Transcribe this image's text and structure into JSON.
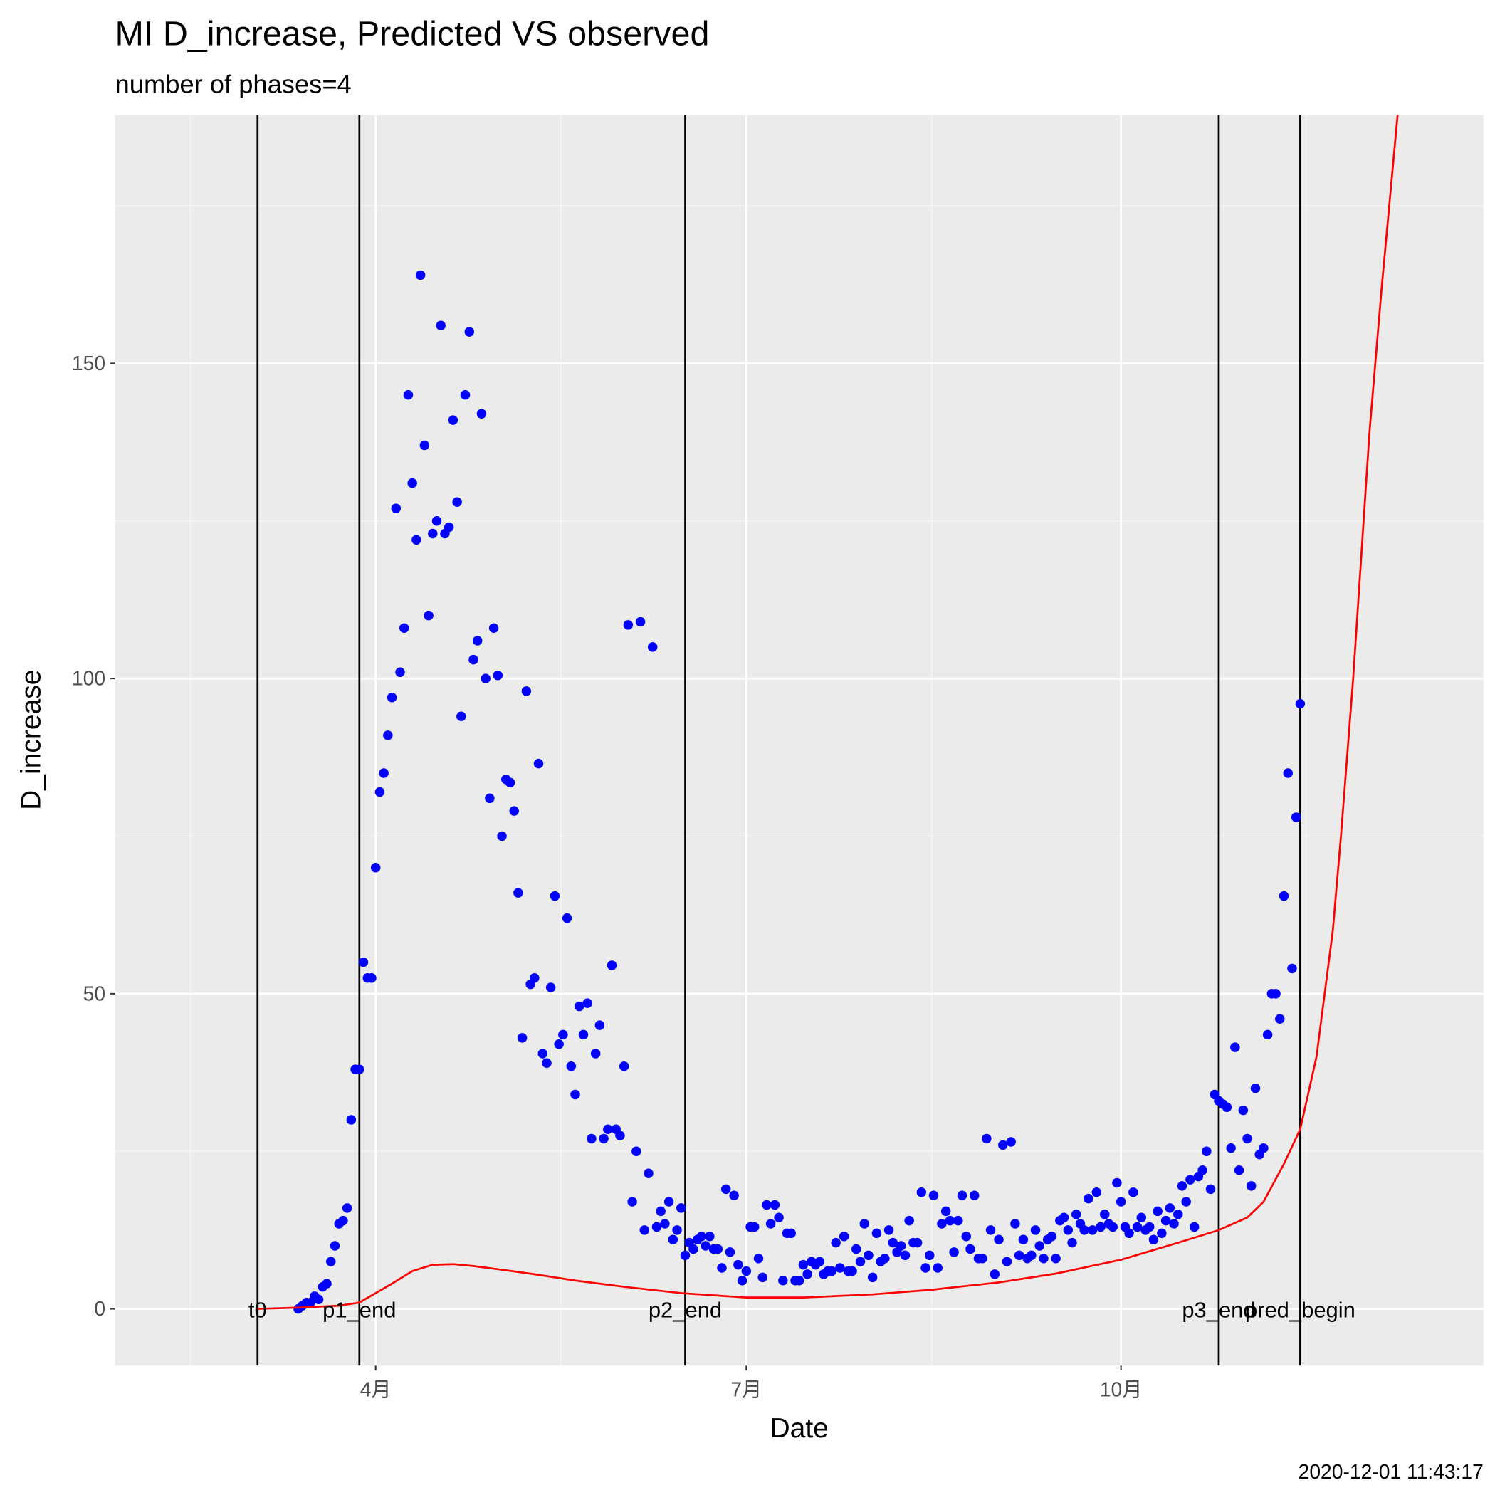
{
  "chart_data": {
    "type": "scatter",
    "title": "MI D_increase, Predicted VS observed",
    "subtitle": "number of phases=4",
    "x_label": "Date",
    "y_label": "D_increase",
    "caption": "2020-12-01 11:43:17",
    "xlim": [
      "2020-01-28",
      "2020-12-29"
    ],
    "xticks": [
      {
        "value": "2020-04-01",
        "label": "4月"
      },
      {
        "value": "2020-07-01",
        "label": "7月"
      },
      {
        "value": "2020-10-01",
        "label": "10月"
      }
    ],
    "ylim": [
      -9,
      189.4
    ],
    "yticks": [
      0,
      50,
      100,
      150
    ],
    "grid": true,
    "vlines": [
      {
        "label": "t0",
        "x": "2020-03-03"
      },
      {
        "label": "p1_end",
        "x": "2020-03-28"
      },
      {
        "label": "p2_end",
        "x": "2020-06-16"
      },
      {
        "label": "p3_end",
        "x": "2020-10-25"
      },
      {
        "label": "pred_begin",
        "x": "2020-11-14"
      }
    ],
    "series": [
      {
        "kind": "point",
        "color": "#0000ff",
        "x": [
          "2020-03-13",
          "2020-03-14",
          "2020-03-15",
          "2020-03-16",
          "2020-03-17",
          "2020-03-18",
          "2020-03-19",
          "2020-03-20",
          "2020-03-21",
          "2020-03-22",
          "2020-03-23",
          "2020-03-24",
          "2020-03-25",
          "2020-03-26",
          "2020-03-27",
          "2020-03-28",
          "2020-03-29",
          "2020-03-30",
          "2020-03-31",
          "2020-04-01",
          "2020-04-02",
          "2020-04-03",
          "2020-04-04",
          "2020-04-05",
          "2020-04-06",
          "2020-04-07",
          "2020-04-08",
          "2020-04-09",
          "2020-04-10",
          "2020-04-11",
          "2020-04-12",
          "2020-04-13",
          "2020-04-14",
          "2020-04-15",
          "2020-04-16",
          "2020-04-17",
          "2020-04-18",
          "2020-04-19",
          "2020-04-20",
          "2020-04-21",
          "2020-04-22",
          "2020-04-23",
          "2020-04-24",
          "2020-04-25",
          "2020-04-26",
          "2020-04-27",
          "2020-04-28",
          "2020-04-29",
          "2020-04-30",
          "2020-05-01",
          "2020-05-02",
          "2020-05-03",
          "2020-05-04",
          "2020-05-05",
          "2020-05-06",
          "2020-05-07",
          "2020-05-08",
          "2020-05-09",
          "2020-05-10",
          "2020-05-11",
          "2020-05-12",
          "2020-05-13",
          "2020-05-14",
          "2020-05-15",
          "2020-05-16",
          "2020-05-17",
          "2020-05-18",
          "2020-05-19",
          "2020-05-20",
          "2020-05-21",
          "2020-05-22",
          "2020-05-23",
          "2020-05-24",
          "2020-05-25",
          "2020-05-26",
          "2020-05-27",
          "2020-05-28",
          "2020-05-29",
          "2020-05-30",
          "2020-05-31",
          "2020-06-01",
          "2020-06-02",
          "2020-06-03",
          "2020-06-04",
          "2020-06-05",
          "2020-06-06",
          "2020-06-07",
          "2020-06-08",
          "2020-06-09",
          "2020-06-10",
          "2020-06-11",
          "2020-06-12",
          "2020-06-13",
          "2020-06-14",
          "2020-06-15",
          "2020-06-16",
          "2020-06-17",
          "2020-06-18",
          "2020-06-19",
          "2020-06-20",
          "2020-06-21",
          "2020-06-22",
          "2020-06-23",
          "2020-06-24",
          "2020-06-25",
          "2020-06-26",
          "2020-06-27",
          "2020-06-28",
          "2020-06-29",
          "2020-06-30",
          "2020-07-01",
          "2020-07-02",
          "2020-07-03",
          "2020-07-04",
          "2020-07-05",
          "2020-07-06",
          "2020-07-07",
          "2020-07-08",
          "2020-07-09",
          "2020-07-10",
          "2020-07-11",
          "2020-07-12",
          "2020-07-13",
          "2020-07-14",
          "2020-07-15",
          "2020-07-16",
          "2020-07-17",
          "2020-07-18",
          "2020-07-19",
          "2020-07-20",
          "2020-07-21",
          "2020-07-22",
          "2020-07-23",
          "2020-07-24",
          "2020-07-25",
          "2020-07-26",
          "2020-07-27",
          "2020-07-28",
          "2020-07-29",
          "2020-07-30",
          "2020-07-31",
          "2020-08-01",
          "2020-08-02",
          "2020-08-03",
          "2020-08-04",
          "2020-08-05",
          "2020-08-06",
          "2020-08-07",
          "2020-08-08",
          "2020-08-09",
          "2020-08-10",
          "2020-08-11",
          "2020-08-12",
          "2020-08-13",
          "2020-08-14",
          "2020-08-15",
          "2020-08-16",
          "2020-08-17",
          "2020-08-18",
          "2020-08-19",
          "2020-08-20",
          "2020-08-21",
          "2020-08-22",
          "2020-08-23",
          "2020-08-24",
          "2020-08-25",
          "2020-08-26",
          "2020-08-27",
          "2020-08-28",
          "2020-08-29",
          "2020-08-30",
          "2020-08-31",
          "2020-09-01",
          "2020-09-02",
          "2020-09-03",
          "2020-09-04",
          "2020-09-05",
          "2020-09-06",
          "2020-09-07",
          "2020-09-08",
          "2020-09-09",
          "2020-09-10",
          "2020-09-11",
          "2020-09-12",
          "2020-09-13",
          "2020-09-14",
          "2020-09-15",
          "2020-09-16",
          "2020-09-17",
          "2020-09-18",
          "2020-09-19",
          "2020-09-20",
          "2020-09-21",
          "2020-09-22",
          "2020-09-23",
          "2020-09-24",
          "2020-09-25",
          "2020-09-26",
          "2020-09-27",
          "2020-09-28",
          "2020-09-29",
          "2020-09-30",
          "2020-10-01",
          "2020-10-02",
          "2020-10-03",
          "2020-10-04",
          "2020-10-05",
          "2020-10-06",
          "2020-10-07",
          "2020-10-08",
          "2020-10-09",
          "2020-10-10",
          "2020-10-11",
          "2020-10-12",
          "2020-10-13",
          "2020-10-14",
          "2020-10-15",
          "2020-10-16",
          "2020-10-17",
          "2020-10-18",
          "2020-10-19",
          "2020-10-20",
          "2020-10-21",
          "2020-10-22",
          "2020-10-23",
          "2020-10-24",
          "2020-10-25",
          "2020-10-26",
          "2020-10-27",
          "2020-10-28",
          "2020-10-29",
          "2020-10-30",
          "2020-10-31",
          "2020-11-01",
          "2020-11-02",
          "2020-11-03",
          "2020-11-04",
          "2020-11-05",
          "2020-11-06",
          "2020-11-07",
          "2020-11-08",
          "2020-11-09",
          "2020-11-10",
          "2020-11-11",
          "2020-11-12",
          "2020-11-13",
          "2020-11-14"
        ],
        "values": [
          0,
          0.5,
          1,
          1,
          2,
          1.5,
          3.5,
          4,
          7.5,
          10,
          13.5,
          14,
          16,
          30,
          38,
          38,
          55,
          52.5,
          52.5,
          70,
          82,
          85,
          91,
          97,
          127,
          101,
          108,
          145,
          131,
          122,
          164,
          137,
          110,
          123,
          125,
          156,
          123,
          124,
          141,
          128,
          94,
          145,
          155,
          103,
          106,
          142,
          100,
          81,
          108,
          100.5,
          75,
          84,
          83.5,
          79,
          66,
          43,
          98,
          51.5,
          52.5,
          86.5,
          40.5,
          39,
          51,
          65.5,
          42,
          43.5,
          62,
          38.5,
          34,
          48,
          43.5,
          48.5,
          27,
          40.5,
          45,
          27,
          28.5,
          54.5,
          28.5,
          27.5,
          38.5,
          108.5,
          17,
          25,
          109,
          12.5,
          21.5,
          105,
          13,
          15.5,
          13.5,
          17,
          11,
          12.5,
          16,
          8.5,
          10.5,
          9.5,
          11,
          11.5,
          10,
          11.5,
          9.5,
          9.5,
          6.5,
          19,
          9,
          18,
          7,
          4.5,
          6,
          13,
          13,
          8,
          5,
          16.5,
          13.5,
          16.5,
          14.5,
          4.5,
          12,
          12,
          4.5,
          4.5,
          7,
          5.5,
          7.5,
          7,
          7.5,
          5.5,
          6,
          6,
          10.5,
          6.5,
          11.5,
          6,
          6,
          9.5,
          7.5,
          13.5,
          8.5,
          5,
          12,
          7.5,
          8,
          12.5,
          10.5,
          9,
          10,
          8.5,
          14,
          10.5,
          10.5,
          18.5,
          6.5,
          8.5,
          18,
          6.5,
          13.5,
          15.5,
          14,
          9,
          14,
          18,
          11.5,
          9.5,
          18,
          8,
          8,
          27,
          12.5,
          5.5,
          11,
          26,
          7.5,
          26.5,
          13.5,
          8.5,
          11,
          8,
          8.5,
          12.5,
          10,
          8,
          11,
          11.5,
          8,
          14,
          14.5,
          12.5,
          10.5,
          15,
          13.5,
          12.5,
          17.5,
          12.5,
          18.5,
          13,
          15,
          13.5,
          13,
          20,
          17,
          13,
          12,
          18.5,
          13,
          14.5,
          12.5,
          13,
          11,
          15.5,
          12,
          14,
          16,
          13.5,
          15,
          19.5,
          17,
          20.5,
          13,
          21,
          22,
          25,
          19,
          34,
          33,
          32.5,
          32,
          25.5,
          41.5,
          22,
          31.5,
          27,
          19.5,
          35,
          24.5,
          25.5,
          43.5,
          50,
          50,
          46,
          65.5,
          85,
          54,
          78,
          96
        ]
      },
      {
        "kind": "line",
        "color": "#ff0000",
        "x": [
          "2020-03-03",
          "2020-03-13",
          "2020-03-23",
          "2020-03-28",
          "2020-04-01",
          "2020-04-05",
          "2020-04-10",
          "2020-04-15",
          "2020-04-20",
          "2020-04-25",
          "2020-05-01",
          "2020-05-10",
          "2020-05-20",
          "2020-06-01",
          "2020-06-15",
          "2020-07-01",
          "2020-07-15",
          "2020-08-01",
          "2020-08-15",
          "2020-09-01",
          "2020-09-15",
          "2020-10-01",
          "2020-10-15",
          "2020-10-25",
          "2020-11-01",
          "2020-11-05",
          "2020-11-10",
          "2020-11-14",
          "2020-11-18",
          "2020-11-22",
          "2020-11-24",
          "2020-11-27",
          "2020-12-01",
          "2020-12-04",
          "2020-12-08"
        ],
        "values": [
          0,
          0.2,
          0.5,
          1,
          2.5,
          4,
          6,
          7,
          7.1,
          6.8,
          6.3,
          5.5,
          4.5,
          3.5,
          2.5,
          1.8,
          1.8,
          2.3,
          3,
          4.2,
          5.6,
          7.8,
          10.5,
          12.5,
          14.5,
          17,
          23,
          28.5,
          40,
          60,
          75,
          100,
          139,
          162,
          190
        ]
      }
    ]
  }
}
